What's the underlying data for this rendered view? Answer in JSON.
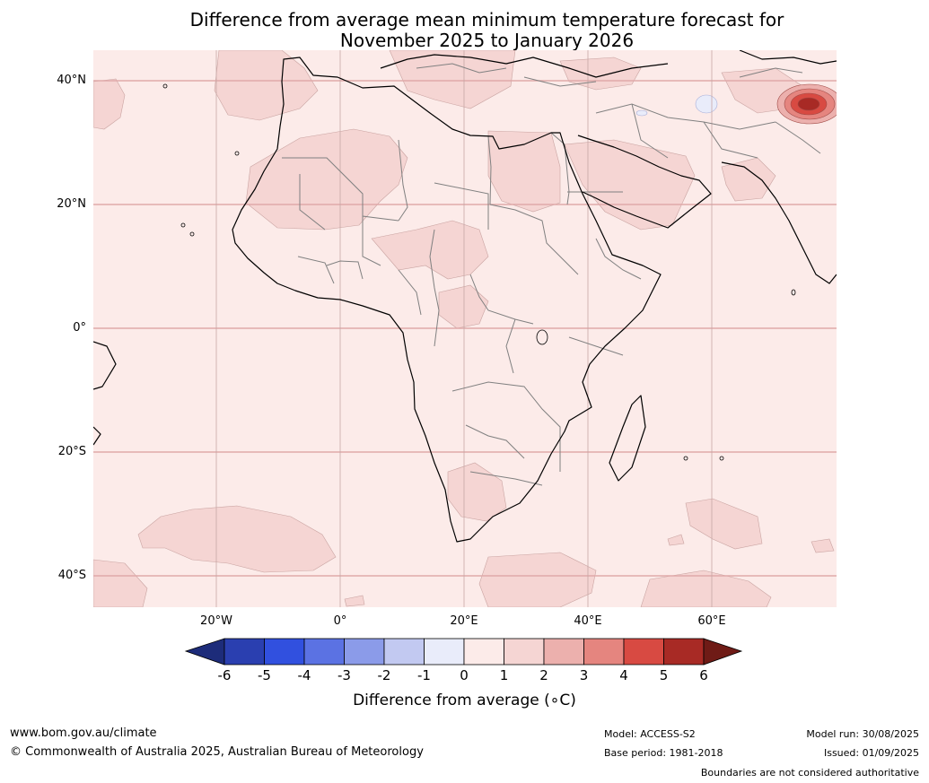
{
  "title": {
    "line1": "Difference from average mean minimum temperature forecast for",
    "line2": "November 2025 to January 2026"
  },
  "map": {
    "region": "Africa and surrounding regions",
    "colors": {
      "ocean_and_land_0_1": "#fcebe9",
      "anomaly_1_2": "#f5d5d3",
      "anomaly_2_3": "#ecb0ad",
      "anomaly_3_4": "#e5857f",
      "anomaly_4_5": "#d84a42",
      "anomaly_5_6": "#a82a25",
      "anomaly_neg1_0": "#e9ecfa",
      "coastline": "#000000",
      "borders": "#808080",
      "gridlines": "#e0a9a9"
    },
    "lat_labels": [
      "40°N",
      "20°N",
      "0°",
      "20°S",
      "40°S"
    ],
    "lon_labels": [
      "20°W",
      "0°",
      "20°E",
      "40°E",
      "60°E"
    ]
  },
  "colorbar": {
    "ticks": [
      "-6",
      "-5",
      "-4",
      "-3",
      "-2",
      "-1",
      "0",
      "1",
      "2",
      "3",
      "4",
      "5",
      "6"
    ],
    "colors": [
      "#1d2c7a",
      "#2a3fb0",
      "#3150df",
      "#5b72e3",
      "#8b9be9",
      "#c2c9f1",
      "#e9ecfa",
      "#fcebe9",
      "#f5d5d3",
      "#ecb0ad",
      "#e5857f",
      "#d84a42",
      "#a82a25",
      "#6f1b16"
    ],
    "label": "Difference from average (∘C)"
  },
  "footer": {
    "website": "www.bom.gov.au/climate",
    "copyright": "© Commonwealth of Australia 2025, Australian Bureau of Meteorology",
    "model": "Model: ACCESS-S2",
    "base_period": "Base period: 1981-2018",
    "model_run": "Model run: 30/08/2025",
    "issued": "Issued: 01/09/2025",
    "disclaimer": "Boundaries are not considered authoritative"
  }
}
